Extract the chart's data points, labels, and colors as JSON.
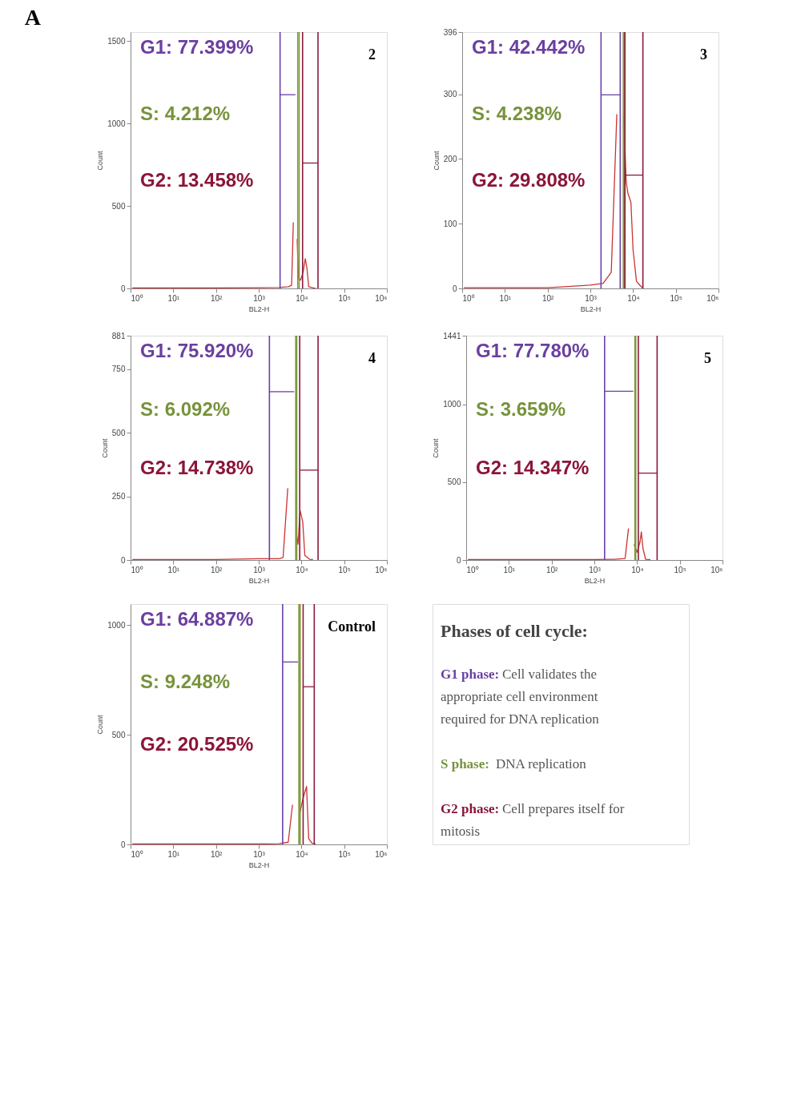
{
  "chart_data": [
    {
      "type": "line",
      "title": "A",
      "xlabel": "BL2-H",
      "ylabel": "Count",
      "log": "x",
      "grid": false,
      "xlim": [
        1,
        1000000
      ],
      "xticks": [
        {
          "value": 1,
          "label": "10⁰"
        },
        {
          "value": 10,
          "label": "10¹"
        },
        {
          "value": 100,
          "label": "10²"
        },
        {
          "value": 1000,
          "label": "10³"
        },
        {
          "value": 10000,
          "label": "10⁴"
        },
        {
          "value": 100000,
          "label": "10⁵"
        },
        {
          "value": 1000000,
          "label": "10⁶"
        }
      ],
      "ylim": [
        0,
        1554
      ],
      "yticks": [
        0,
        500,
        1000,
        1500
      ],
      "series": [
        {
          "color": "#cc3333",
          "x": [
            1.1,
            100,
            1000,
            3000,
            5000,
            5890,
            6460,
            6920,
            7410,
            7590,
            7940,
            8510,
            9550,
            10960,
            12300,
            13490,
            14790,
            19050,
            21380
          ],
          "values": [
            3,
            3,
            4,
            5,
            10,
            20,
            400,
            null,
            null,
            null,
            300,
            60,
            50,
            100,
            180,
            120,
            10,
            3,
            2
          ]
        },
        {
          "color": "#6a40a8",
          "x": [
            3160,
            7240
          ],
          "values": [
            1174,
            1174
          ]
        },
        {
          "color": "#8b1a3c",
          "x": [
            10640,
            24400
          ],
          "values": [
            760,
            760
          ]
        }
      ],
      "ref_lines": [
        {
          "axis": "x",
          "value": 3160,
          "color": "#6a40a8"
        },
        {
          "axis": "x",
          "value": 8200,
          "color": "#7f9a3c"
        },
        {
          "axis": "x",
          "value": 8840,
          "color": "#7f9a3c"
        },
        {
          "axis": "x",
          "value": 10640,
          "color": "#8b1a3c"
        },
        {
          "axis": "x",
          "value": 24400,
          "color": "#8b1a3c"
        }
      ],
      "annotations": [
        "G1: 77.399%",
        "S: 4.212%",
        "G2: 13.458%",
        "2"
      ]
    },
    {
      "type": "line",
      "xlabel": "BL2-H",
      "ylabel": "Count",
      "log": "x",
      "grid": false,
      "xlim": [
        1,
        1000000
      ],
      "xticks": [
        {
          "value": 1,
          "label": "10⁰"
        },
        {
          "value": 10,
          "label": "10¹"
        },
        {
          "value": 100,
          "label": "10²"
        },
        {
          "value": 1000,
          "label": "10³"
        },
        {
          "value": 10000,
          "label": "10⁴"
        },
        {
          "value": 100000,
          "label": "10⁵"
        },
        {
          "value": 1000000,
          "label": "10⁶"
        }
      ],
      "ylim": [
        0,
        396
      ],
      "yticks": [
        0,
        100,
        200,
        300,
        396
      ],
      "series": [
        {
          "color": "#cc3333",
          "x": [
            1.1,
            100,
            300,
            1000,
            2000,
            3090,
            4170,
            4680,
            5370,
            6030,
            6920,
            7590,
            8910,
            10000,
            12020,
            14450,
            16600
          ],
          "values": [
            1,
            1,
            3,
            5,
            8,
            25,
            269,
            null,
            null,
            269,
            164,
            147,
            133,
            60,
            11,
            5,
            1
          ]
        },
        {
          "color": "#6a40a8",
          "x": [
            1780,
            5010
          ],
          "values": [
            299,
            299
          ]
        },
        {
          "color": "#8b1a3c",
          "x": [
            6460,
            17000
          ],
          "values": [
            175,
            175
          ]
        }
      ],
      "ref_lines": [
        {
          "axis": "x",
          "value": 1780,
          "color": "#6a40a8"
        },
        {
          "axis": "x",
          "value": 5010,
          "color": "#6a40a8"
        },
        {
          "axis": "x",
          "value": 5900,
          "color": "#7f9a3c"
        },
        {
          "axis": "x",
          "value": 6310,
          "color": "#7f9a3c"
        },
        {
          "axis": "x",
          "value": 6460,
          "color": "#8b1a3c"
        },
        {
          "axis": "x",
          "value": 17000,
          "color": "#8b1a3c"
        }
      ],
      "annotations": [
        "G1: 42.442%",
        "S: 4.238%",
        "G2: 29.808%",
        "3"
      ]
    },
    {
      "type": "line",
      "xlabel": "BL2-H",
      "ylabel": "Count",
      "log": "x",
      "grid": false,
      "xlim": [
        1,
        1000000
      ],
      "xticks": [
        {
          "value": 1,
          "label": "10⁰"
        },
        {
          "value": 10,
          "label": "10¹"
        },
        {
          "value": 100,
          "label": "10²"
        },
        {
          "value": 1000,
          "label": "10³"
        },
        {
          "value": 10000,
          "label": "10⁴"
        },
        {
          "value": 100000,
          "label": "10⁵"
        },
        {
          "value": 1000000,
          "label": "10⁶"
        }
      ],
      "ylim": [
        0,
        881
      ],
      "yticks": [
        0,
        250,
        500,
        750,
        881
      ],
      "series": [
        {
          "color": "#cc3333",
          "x": [
            1.1,
            100,
            1000,
            3000,
            3720,
            4790,
            5750,
            6920,
            7590,
            8320,
            9330,
            10720,
            12020,
            15490,
            18620
          ],
          "values": [
            2,
            2,
            5,
            5,
            10,
            282,
            null,
            null,
            106,
            62,
            194,
            150,
            18,
            3,
            2
          ]
        },
        {
          "color": "#6a40a8",
          "x": [
            1780,
            6760
          ],
          "values": [
            661,
            661
          ]
        },
        {
          "color": "#8b1a3c",
          "x": [
            9120,
            24500
          ],
          "values": [
            353,
            353
          ]
        }
      ],
      "ref_lines": [
        {
          "axis": "x",
          "value": 1780,
          "color": "#6a40a8"
        },
        {
          "axis": "x",
          "value": 7350,
          "color": "#7f9a3c"
        },
        {
          "axis": "x",
          "value": 7760,
          "color": "#7f9a3c"
        },
        {
          "axis": "x",
          "value": 9120,
          "color": "#8b1a3c"
        },
        {
          "axis": "x",
          "value": 24500,
          "color": "#8b1a3c"
        }
      ],
      "annotations": [
        "G1: 75.920%",
        "S: 6.092%",
        "G2: 14.738%",
        "4"
      ]
    },
    {
      "type": "line",
      "xlabel": "BL2-H",
      "ylabel": "Count",
      "log": "x",
      "grid": false,
      "xlim": [
        1,
        1000000
      ],
      "xticks": [
        {
          "value": 1,
          "label": "10⁰"
        },
        {
          "value": 10,
          "label": "10¹"
        },
        {
          "value": 100,
          "label": "10²"
        },
        {
          "value": 1000,
          "label": "10³"
        },
        {
          "value": 10000,
          "label": "10⁴"
        },
        {
          "value": 100000,
          "label": "10⁵"
        },
        {
          "value": 1000000,
          "label": "10⁶"
        }
      ],
      "ylim": [
        0,
        1441
      ],
      "yticks": [
        0,
        500,
        1000,
        1441
      ],
      "series": [
        {
          "color": "#cc3333",
          "x": [
            1.1,
            100,
            1000,
            3000,
            5250,
            6310,
            6920,
            7940,
            8510,
            10000,
            11750,
            12590,
            13800,
            15850,
            20420
          ],
          "values": [
            3,
            3,
            3,
            5,
            10,
            203,
            null,
            null,
            100,
            50,
            116,
            181,
            72,
            5,
            3
          ]
        },
        {
          "color": "#6a40a8",
          "x": [
            1740,
            8130
          ],
          "values": [
            1084,
            1084
          ]
        },
        {
          "color": "#8b1a3c",
          "x": [
            10720,
            29500
          ],
          "values": [
            558,
            558
          ]
        }
      ],
      "ref_lines": [
        {
          "axis": "x",
          "value": 1740,
          "color": "#6a40a8"
        },
        {
          "axis": "x",
          "value": 8910,
          "color": "#7f9a3c"
        },
        {
          "axis": "x",
          "value": 9330,
          "color": "#7f9a3c"
        },
        {
          "axis": "x",
          "value": 10720,
          "color": "#8b1a3c"
        },
        {
          "axis": "x",
          "value": 29500,
          "color": "#8b1a3c"
        }
      ],
      "annotations": [
        "G1: 77.780%",
        "S: 3.659%",
        "G2: 14.347%",
        "5"
      ]
    },
    {
      "type": "line",
      "xlabel": "BL2-H",
      "ylabel": "Count",
      "log": "x",
      "grid": false,
      "xlim": [
        1,
        1000000
      ],
      "xticks": [
        {
          "value": 1,
          "label": "10⁰"
        },
        {
          "value": 10,
          "label": "10¹"
        },
        {
          "value": 100,
          "label": "10²"
        },
        {
          "value": 1000,
          "label": "10³"
        },
        {
          "value": 10000,
          "label": "10⁴"
        },
        {
          "value": 100000,
          "label": "10⁵"
        },
        {
          "value": 1000000,
          "label": "10⁶"
        }
      ],
      "ylim": [
        0,
        1096
      ],
      "yticks": [
        0,
        500,
        1000
      ],
      "series": [
        {
          "color": "#cc3333",
          "x": [
            1.1,
            100,
            1000,
            3000,
            4900,
            6170,
            7240,
            8320,
            9120,
            10960,
            13180,
            14790,
            17780,
            21380
          ],
          "values": [
            2,
            2,
            2,
            3,
            10,
            181,
            null,
            null,
            140,
            212,
            264,
            26,
            5,
            2
          ]
        },
        {
          "color": "#6a40a8",
          "x": [
            3630,
            8320
          ],
          "values": [
            832,
            832
          ]
        },
        {
          "color": "#8b1a3c",
          "x": [
            10960,
            19950
          ],
          "values": [
            719,
            719
          ]
        }
      ],
      "ref_lines": [
        {
          "axis": "x",
          "value": 3630,
          "color": "#6a40a8"
        },
        {
          "axis": "x",
          "value": 8710,
          "color": "#7f9a3c"
        },
        {
          "axis": "x",
          "value": 9330,
          "color": "#7f9a3c"
        },
        {
          "axis": "x",
          "value": 10960,
          "color": "#8b1a3c"
        },
        {
          "axis": "x",
          "value": 19950,
          "color": "#8b1a3c"
        }
      ],
      "annotations": [
        "G1: 64.887%",
        "S: 9.248%",
        "G2: 20.525%",
        "Control"
      ]
    },
    {
      "type": "other",
      "title": "Phases of cell cycle:",
      "annotations": [
        "G1 phase: Cell validates the appropriate cell environment required for DNA replication",
        "S phase: DNA replication",
        "G2 phase: Cell prepares itself for mitosis"
      ]
    }
  ]
}
